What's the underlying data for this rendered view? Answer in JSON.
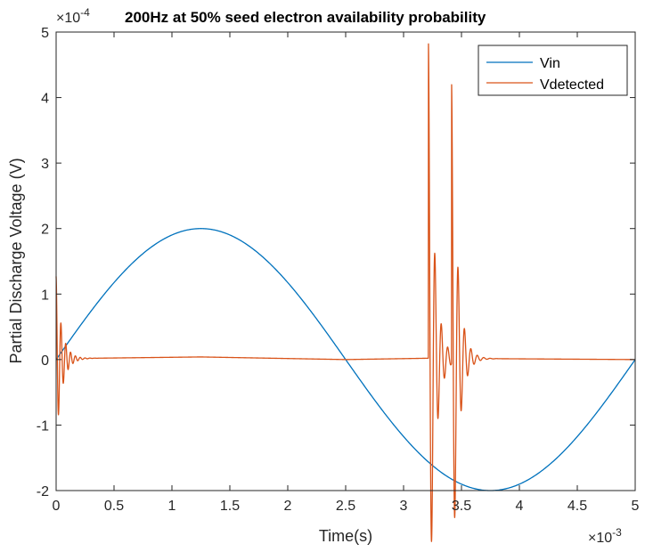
{
  "chart_data": {
    "type": "line",
    "title": "200Hz at 50% seed electron availability probability",
    "xlabel": "Time(s)",
    "ylabel": "Partial Discharge Voltage (V)",
    "x_multiplier": "×10",
    "x_exponent": "-3",
    "y_multiplier": "×10",
    "y_exponent": "-4",
    "xlim": [
      0,
      5
    ],
    "ylim": [
      -2,
      5
    ],
    "x_ticks": [
      0,
      0.5,
      1,
      1.5,
      2,
      2.5,
      3,
      3.5,
      4,
      4.5,
      5
    ],
    "x_tick_labels": [
      "0",
      "0.5",
      "1",
      "1.5",
      "2",
      "2.5",
      "3",
      "3.5",
      "4",
      "4.5",
      "5"
    ],
    "y_ticks": [
      -2,
      -1,
      0,
      1,
      2,
      3,
      4,
      5
    ],
    "y_tick_labels": [
      "-2",
      "-1",
      "0",
      "1",
      "2",
      "3",
      "4",
      "5"
    ],
    "legend_position": "top-right",
    "series": [
      {
        "name": "Vin",
        "color": "#0072BD",
        "kind": "sine",
        "amplitude": 2,
        "frequency_hz": 200,
        "x_scale": 0.001
      },
      {
        "name": "Vdetected",
        "color": "#D95319",
        "baseline": [
          [
            0,
            0
          ],
          [
            0.3,
            0.02
          ],
          [
            1.25,
            0.04
          ],
          [
            2.5,
            0
          ],
          [
            3.2,
            0.02
          ],
          [
            5,
            0
          ]
        ],
        "oscillations": [
          {
            "t0": 0,
            "amp": 1.27,
            "freq": 24,
            "tau": 0.05,
            "phase": 1.5708,
            "offset": 0
          },
          {
            "t0": 3.215,
            "amp": 4.8,
            "freq": 18,
            "tau": 0.05,
            "phase": 1.5708,
            "offset": 0.02
          },
          {
            "t0": 3.415,
            "amp": 4.25,
            "freq": 18,
            "tau": 0.05,
            "phase": 1.5708,
            "offset": 0.02
          }
        ]
      }
    ]
  }
}
